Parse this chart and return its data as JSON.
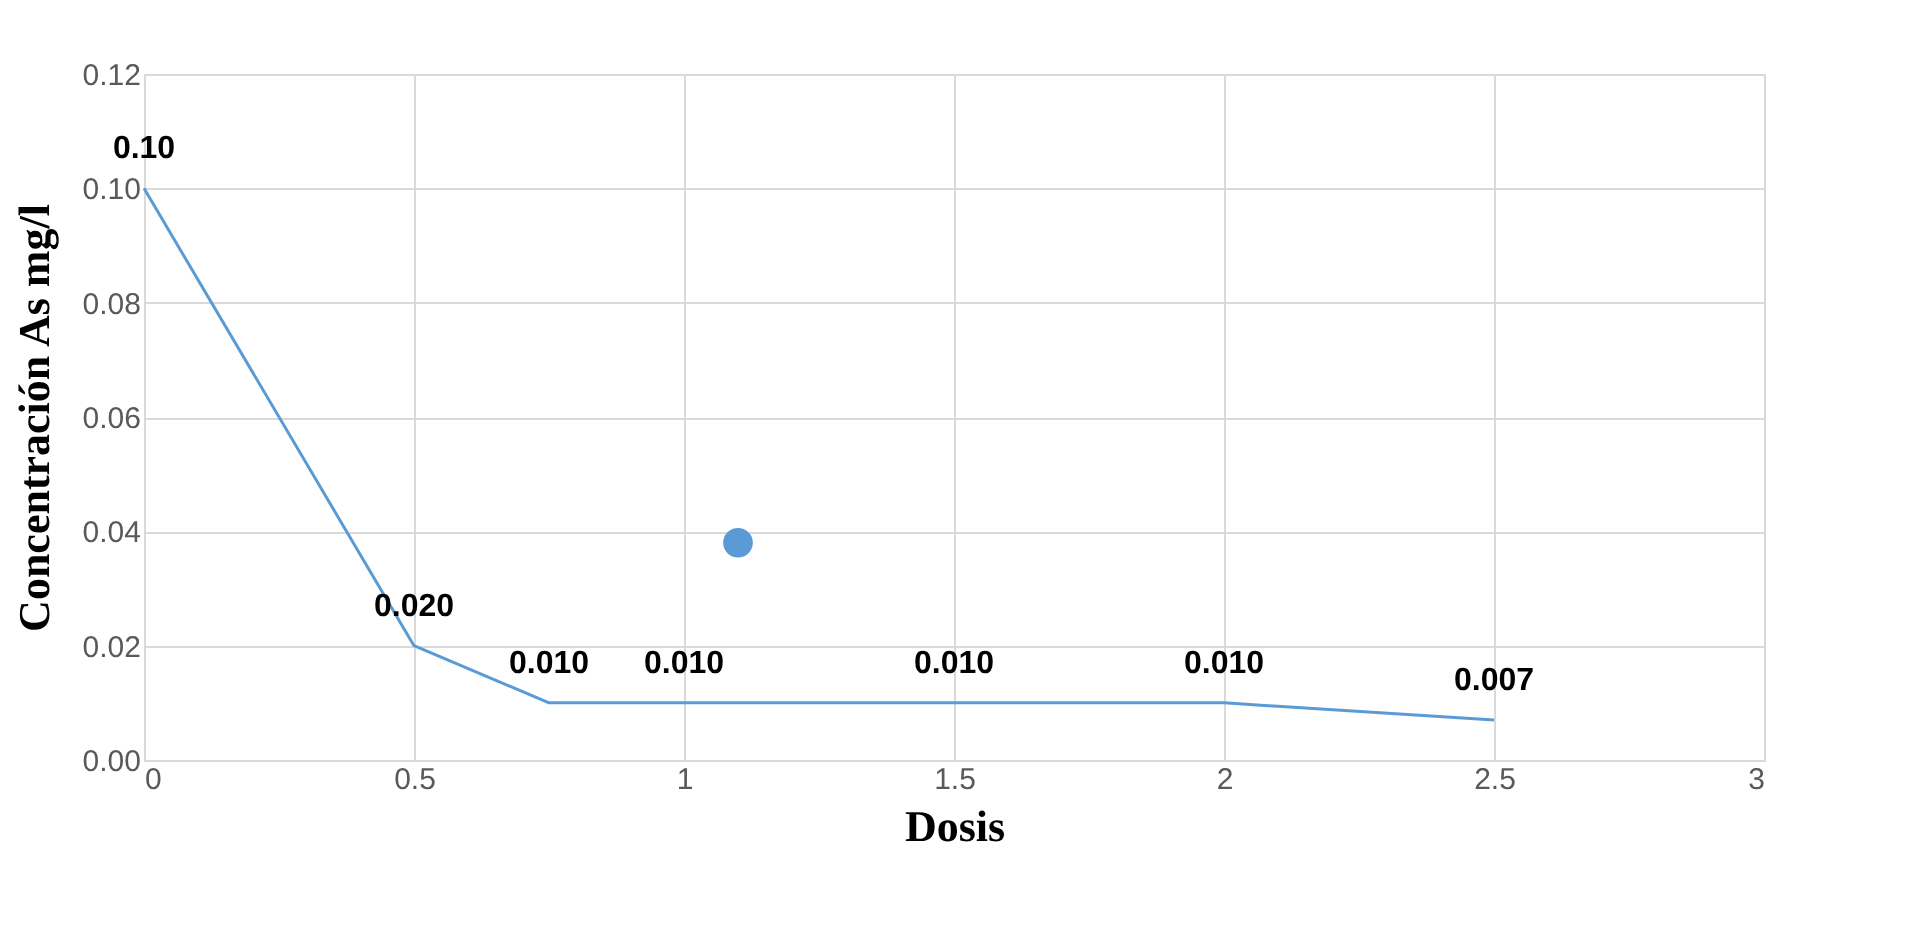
{
  "chart_data": {
    "type": "line",
    "xlabel": "Dosis",
    "ylabel": "Concentración As mg/l",
    "x": [
      0,
      0.5,
      0.75,
      1,
      1.5,
      2,
      2.5
    ],
    "series": [
      {
        "color": "#5b9bd5",
        "values": [
          0.1,
          0.02,
          0.01,
          0.01,
          0.01,
          0.01,
          0.007
        ],
        "value_labels": [
          "0.10",
          "0.020",
          "0.010",
          "0.010",
          "0.010",
          "0.010",
          "0.007"
        ],
        "marker": "none"
      },
      {
        "type": "scatter",
        "color": "#5b9bd5",
        "x": [
          1.1
        ],
        "values": [
          0.038
        ],
        "marker": "circle"
      }
    ],
    "xlim": [
      0,
      3
    ],
    "xticks": [
      0,
      0.5,
      1,
      1.5,
      2,
      2.5,
      3
    ],
    "ylim": [
      0,
      0.12
    ],
    "yticks": [
      {
        "value": 0,
        "label": "0.00"
      },
      {
        "value": 0.02,
        "label": "0.02"
      },
      {
        "value": 0.04,
        "label": "0.04"
      },
      {
        "value": 0.06,
        "label": "0.06"
      },
      {
        "value": 0.08,
        "label": "0.08"
      },
      {
        "value": 0.1,
        "label": "0.10"
      },
      {
        "value": 0.12,
        "label": "0.12"
      }
    ],
    "grid": true
  }
}
